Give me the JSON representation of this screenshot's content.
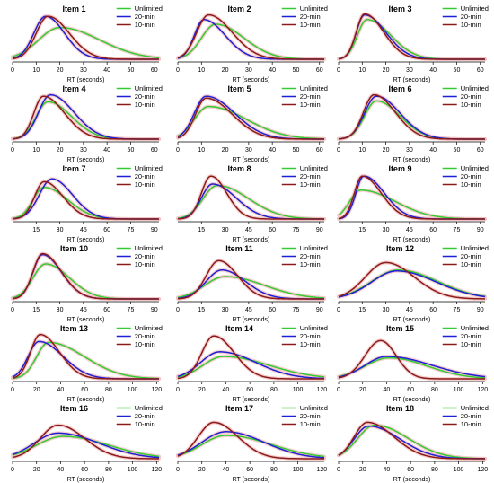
{
  "colors": {
    "Unlimited": "#33cc33",
    "20-min": "#1f1fd6",
    "10-min": "#8b1a1a",
    "halo": "#f2c2c2"
  },
  "legend": [
    "Unlimited",
    "20-min",
    "10-min"
  ],
  "chart_data": [
    {
      "type": "line",
      "title": "Item  1",
      "xlabel": "RT (seconds)",
      "xticks": [
        0,
        10,
        20,
        30,
        40,
        50,
        60
      ],
      "xlim": [
        0,
        62
      ],
      "series": [
        {
          "name": "Unlimited",
          "peak": 20,
          "sigL": 9,
          "sigR": 17,
          "h": 0.68
        },
        {
          "name": "20-min",
          "peak": 14,
          "sigL": 5,
          "sigR": 8,
          "h": 0.92
        },
        {
          "name": "10-min",
          "peak": 15,
          "sigL": 5,
          "sigR": 9,
          "h": 0.92
        }
      ]
    },
    {
      "type": "line",
      "title": "Item  2",
      "xlabel": "RT (seconds)",
      "xticks": [
        0,
        10,
        20,
        30,
        40,
        50,
        60
      ],
      "xlim": [
        0,
        62
      ],
      "series": [
        {
          "name": "Unlimited",
          "peak": 16,
          "sigL": 6,
          "sigR": 12,
          "h": 0.75
        },
        {
          "name": "20-min",
          "peak": 11,
          "sigL": 4,
          "sigR": 9,
          "h": 0.85
        },
        {
          "name": "10-min",
          "peak": 13,
          "sigL": 5,
          "sigR": 10,
          "h": 0.95
        }
      ]
    },
    {
      "type": "line",
      "title": "Item  3",
      "xlabel": "RT (seconds)",
      "xticks": [
        0,
        10,
        20,
        30,
        40,
        50,
        60
      ],
      "xlim": [
        0,
        62
      ],
      "series": [
        {
          "name": "Unlimited",
          "peak": 12,
          "sigL": 4,
          "sigR": 10,
          "h": 0.85
        },
        {
          "name": "20-min",
          "peak": 11,
          "sigL": 3.5,
          "sigR": 9,
          "h": 0.95
        },
        {
          "name": "10-min",
          "peak": 11,
          "sigL": 3.5,
          "sigR": 8,
          "h": 0.97
        }
      ]
    },
    {
      "type": "line",
      "title": "Item  4",
      "xlabel": "RT (seconds)",
      "xticks": [
        0,
        10,
        20,
        30,
        40,
        50,
        60
      ],
      "xlim": [
        0,
        62
      ],
      "series": [
        {
          "name": "Unlimited",
          "peak": 15,
          "sigL": 5,
          "sigR": 10,
          "h": 0.8
        },
        {
          "name": "20-min",
          "peak": 16,
          "sigL": 5,
          "sigR": 10,
          "h": 0.95
        },
        {
          "name": "10-min",
          "peak": 13,
          "sigL": 4,
          "sigR": 9,
          "h": 0.92
        }
      ]
    },
    {
      "type": "line",
      "title": "Item  5",
      "xlabel": "RT (seconds)",
      "xticks": [
        0,
        10,
        20,
        30,
        40,
        50,
        60
      ],
      "xlim": [
        0,
        62
      ],
      "series": [
        {
          "name": "Unlimited",
          "peak": 13,
          "sigL": 6,
          "sigR": 16,
          "h": 0.7
        },
        {
          "name": "20-min",
          "peak": 12,
          "sigL": 5,
          "sigR": 12,
          "h": 0.92
        },
        {
          "name": "10-min",
          "peak": 12,
          "sigL": 4.5,
          "sigR": 11,
          "h": 0.88
        }
      ]
    },
    {
      "type": "line",
      "title": "Item  6",
      "xlabel": "RT (seconds)",
      "xticks": [
        0,
        10,
        20,
        30,
        40,
        50,
        60
      ],
      "xlim": [
        0,
        62
      ],
      "series": [
        {
          "name": "Unlimited",
          "peak": 16,
          "sigL": 5,
          "sigR": 10,
          "h": 0.82
        },
        {
          "name": "20-min",
          "peak": 16,
          "sigL": 5,
          "sigR": 10,
          "h": 0.92
        },
        {
          "name": "10-min",
          "peak": 15,
          "sigL": 4.5,
          "sigR": 9,
          "h": 0.95
        }
      ]
    },
    {
      "type": "line",
      "title": "Item  7",
      "xlabel": "RT (seconds)",
      "xticks": [
        15,
        30,
        45,
        60,
        75,
        90
      ],
      "xlim": [
        0,
        93
      ],
      "series": [
        {
          "name": "Unlimited",
          "peak": 20,
          "sigL": 7,
          "sigR": 15,
          "h": 0.68
        },
        {
          "name": "20-min",
          "peak": 25,
          "sigL": 8,
          "sigR": 13,
          "h": 0.86
        },
        {
          "name": "10-min",
          "peak": 20,
          "sigL": 6,
          "sigR": 12,
          "h": 0.8
        }
      ]
    },
    {
      "type": "line",
      "title": "Item  8",
      "xlabel": "RT (seconds)",
      "xticks": [
        15,
        30,
        45,
        60,
        75,
        90
      ],
      "xlim": [
        0,
        93
      ],
      "series": [
        {
          "name": "Unlimited",
          "peak": 25,
          "sigL": 9,
          "sigR": 20,
          "h": 0.72
        },
        {
          "name": "20-min",
          "peak": 22,
          "sigL": 7,
          "sigR": 15,
          "h": 0.75
        },
        {
          "name": "10-min",
          "peak": 21,
          "sigL": 6,
          "sigR": 10,
          "h": 0.92
        }
      ]
    },
    {
      "type": "line",
      "title": "Item  9",
      "xlabel": "RT (seconds)",
      "xticks": [
        15,
        30,
        45,
        60,
        75,
        90
      ],
      "xlim": [
        0,
        93
      ],
      "series": [
        {
          "name": "Unlimited",
          "peak": 14,
          "sigL": 7,
          "sigR": 22,
          "h": 0.62
        },
        {
          "name": "20-min",
          "peak": 16,
          "sigL": 5,
          "sigR": 13,
          "h": 0.92
        },
        {
          "name": "10-min",
          "peak": 15,
          "sigL": 5,
          "sigR": 12,
          "h": 0.92
        }
      ]
    },
    {
      "type": "line",
      "title": "Item  10",
      "xlabel": "RT (seconds)",
      "xticks": [
        0,
        15,
        30,
        45,
        60,
        75,
        90
      ],
      "xlim": [
        0,
        93
      ],
      "series": [
        {
          "name": "Unlimited",
          "peak": 21,
          "sigL": 8,
          "sigR": 15,
          "h": 0.75
        },
        {
          "name": "20-min",
          "peak": 19,
          "sigL": 6,
          "sigR": 12,
          "h": 0.95
        },
        {
          "name": "10-min",
          "peak": 19,
          "sigL": 6,
          "sigR": 12,
          "h": 0.97
        }
      ]
    },
    {
      "type": "line",
      "title": "Item  11",
      "xlabel": "RT (seconds)",
      "xticks": [
        0,
        15,
        30,
        45,
        60,
        75,
        90
      ],
      "xlim": [
        0,
        93
      ],
      "series": [
        {
          "name": "Unlimited",
          "peak": 30,
          "sigL": 13,
          "sigR": 25,
          "h": 0.48
        },
        {
          "name": "20-min",
          "peak": 28,
          "sigL": 10,
          "sigR": 15,
          "h": 0.62
        },
        {
          "name": "10-min",
          "peak": 26,
          "sigL": 8,
          "sigR": 12,
          "h": 0.82
        }
      ]
    },
    {
      "type": "line",
      "title": "Item  12",
      "xlabel": "RT (seconds)",
      "xticks": [
        0,
        15,
        30,
        45,
        60,
        75,
        90
      ],
      "xlim": [
        0,
        93
      ],
      "series": [
        {
          "name": "Unlimited",
          "peak": 38,
          "sigL": 17,
          "sigR": 25,
          "h": 0.62
        },
        {
          "name": "20-min",
          "peak": 37,
          "sigL": 16,
          "sigR": 25,
          "h": 0.6
        },
        {
          "name": "10-min",
          "peak": 30,
          "sigL": 13,
          "sigR": 18,
          "h": 0.78
        }
      ]
    },
    {
      "type": "line",
      "title": "Item  13",
      "xlabel": "RT (seconds)",
      "xticks": [
        0,
        20,
        40,
        60,
        80,
        100,
        120
      ],
      "xlim": [
        0,
        122
      ],
      "series": [
        {
          "name": "Unlimited",
          "peak": 30,
          "sigL": 10,
          "sigR": 30,
          "h": 0.78
        },
        {
          "name": "20-min",
          "peak": 22,
          "sigL": 9,
          "sigR": 20,
          "h": 0.8
        },
        {
          "name": "10-min",
          "peak": 23,
          "sigL": 8,
          "sigR": 16,
          "h": 0.95
        }
      ]
    },
    {
      "type": "line",
      "title": "Item  14",
      "xlabel": "RT (seconds)",
      "xticks": [
        0,
        20,
        40,
        60,
        80,
        100,
        120
      ],
      "xlim": [
        0,
        122
      ],
      "series": [
        {
          "name": "Unlimited",
          "peak": 38,
          "sigL": 17,
          "sigR": 38,
          "h": 0.48
        },
        {
          "name": "20-min",
          "peak": 35,
          "sigL": 16,
          "sigR": 30,
          "h": 0.58
        },
        {
          "name": "10-min",
          "peak": 30,
          "sigL": 10,
          "sigR": 17,
          "h": 0.92
        }
      ]
    },
    {
      "type": "line",
      "title": "Item  15",
      "xlabel": "RT (seconds)",
      "xticks": [
        0,
        20,
        40,
        60,
        80,
        100,
        120
      ],
      "xlim": [
        0,
        122
      ],
      "series": [
        {
          "name": "Unlimited",
          "peak": 42,
          "sigL": 20,
          "sigR": 32,
          "h": 0.45
        },
        {
          "name": "20-min",
          "peak": 40,
          "sigL": 18,
          "sigR": 38,
          "h": 0.48
        },
        {
          "name": "10-min",
          "peak": 35,
          "sigL": 13,
          "sigR": 13,
          "h": 0.82
        }
      ]
    },
    {
      "type": "line",
      "title": "Item  16",
      "xlabel": "RT (seconds)",
      "xticks": [
        0,
        20,
        40,
        60,
        80,
        100,
        120
      ],
      "xlim": [
        0,
        122
      ],
      "series": [
        {
          "name": "Unlimited",
          "peak": 42,
          "sigL": 22,
          "sigR": 38,
          "h": 0.48
        },
        {
          "name": "20-min",
          "peak": 38,
          "sigL": 20,
          "sigR": 34,
          "h": 0.55
        },
        {
          "name": "10-min",
          "peak": 38,
          "sigL": 15,
          "sigR": 22,
          "h": 0.72
        }
      ]
    },
    {
      "type": "line",
      "title": "Item  17",
      "xlabel": "RT (seconds)",
      "xticks": [
        0,
        20,
        40,
        60,
        80,
        100,
        120
      ],
      "xlim": [
        0,
        122
      ],
      "series": [
        {
          "name": "Unlimited",
          "peak": 40,
          "sigL": 20,
          "sigR": 38,
          "h": 0.5
        },
        {
          "name": "20-min",
          "peak": 40,
          "sigL": 20,
          "sigR": 32,
          "h": 0.58
        },
        {
          "name": "10-min",
          "peak": 30,
          "sigL": 13,
          "sigR": 20,
          "h": 0.78
        }
      ]
    },
    {
      "type": "line",
      "title": "Item  18",
      "xlabel": "RT (seconds)",
      "xticks": [
        0,
        20,
        40,
        60,
        80,
        100,
        120
      ],
      "xlim": [
        0,
        122
      ],
      "series": [
        {
          "name": "Unlimited",
          "peak": 30,
          "sigL": 14,
          "sigR": 28,
          "h": 0.72
        },
        {
          "name": "20-min",
          "peak": 25,
          "sigL": 12,
          "sigR": 26,
          "h": 0.7
        },
        {
          "name": "10-min",
          "peak": 24,
          "sigL": 11,
          "sigR": 22,
          "h": 0.78
        }
      ]
    }
  ]
}
